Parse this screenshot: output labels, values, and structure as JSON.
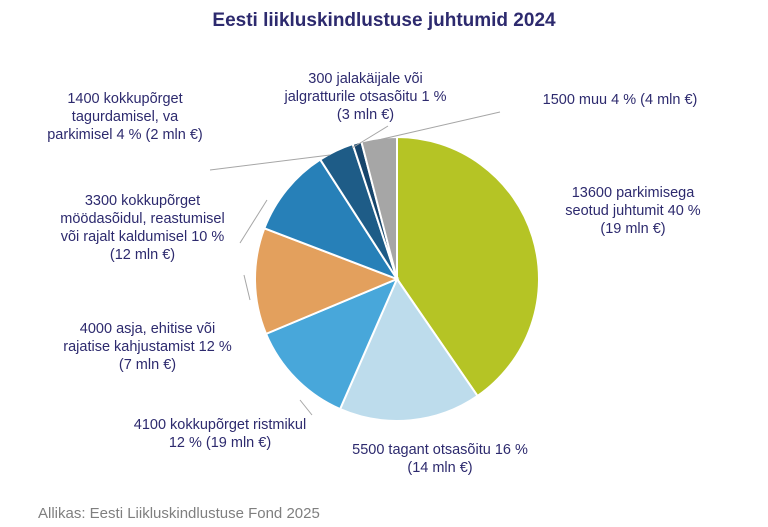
{
  "title": "Eesti liikluskindlustuse juhtumid 2024",
  "source": "Allikas: Eesti Liikluskindlustuse Fond 2025",
  "chart_data": {
    "type": "pie",
    "title": "Eesti liikluskindlustuse juhtumid 2024",
    "slices": [
      {
        "value": 40,
        "color": "#b5c425",
        "label": "13600 parkimisega\nseotud juhtumit 40 %\n(19 mln €)"
      },
      {
        "value": 16,
        "color": "#bddcec",
        "label": "5500 tagant otsasõitu 16 %\n(14 mln €)"
      },
      {
        "value": 12,
        "color": "#48a7da",
        "label": "4100 kokkupõrget ristmikul\n12 % (19 mln €)"
      },
      {
        "value": 12,
        "color": "#e3a05d",
        "label": "4000 asja, ehitise või\nrajatise kahjustamist 12 %\n(7 mln €)"
      },
      {
        "value": 10,
        "color": "#2780b8",
        "label": "3300 kokkupõrget\nmöödasõidul, reastumisel\nvõi rajalt kaldumisel 10 %\n(12 mln €)"
      },
      {
        "value": 4,
        "color": "#1e5c87",
        "label": "1400 kokkupõrget\ntagurdamisel, va\nparkimisel 4 % (2 mln €)"
      },
      {
        "value": 1,
        "color": "#17456b",
        "label": "300 jalakäijale või\njalgratturile otsasõitu 1 %\n(3 mln €)"
      },
      {
        "value": 4,
        "color": "#a6a6a6",
        "label": "1500 muu 4 % (4 mln €)"
      }
    ]
  }
}
